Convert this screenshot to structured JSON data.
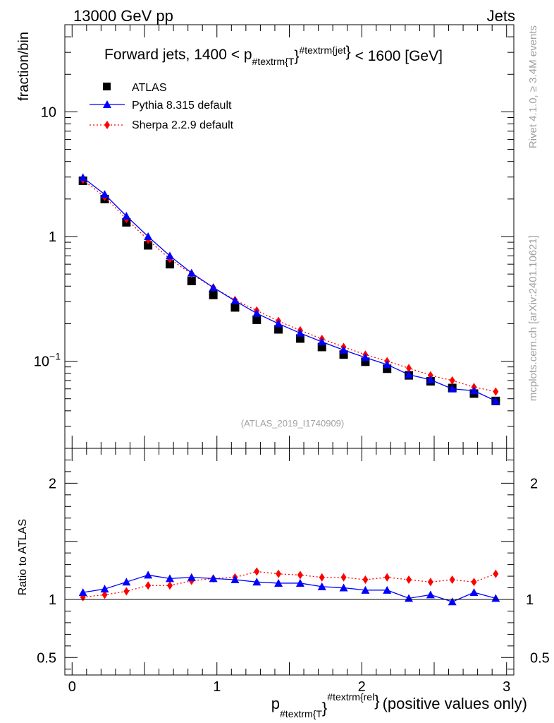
{
  "header": {
    "energy": "13000 GeV pp",
    "category": "Jets",
    "rivet_label": "Rivet 4.1.0, ≥ 3.4M events",
    "source_label": "mcplots.cern.ch [arXiv:2401.10621]",
    "analysis_id": "(ATLAS_2019_I1740909)"
  },
  "colors": {
    "atlas": "#000000",
    "pythia": "#0000ff",
    "sherpa": "#ff0000"
  },
  "chart_data": [
    {
      "type": "line",
      "scale": "log",
      "title_parts": {
        "prefix": "Forward jets, 1400 < p",
        "subscript": "#textrm{T",
        "subscript_close": "}",
        "superscript": "#textrm{jet",
        "superscript_close": "}",
        "suffix": "< 1600 [GeV]"
      },
      "ylabel": "fraction/bin",
      "xlim": [
        -0.05,
        3.05
      ],
      "ylim": [
        0.02,
        50
      ],
      "y_ticks": [
        {
          "value": 10,
          "label": "10"
        },
        {
          "value": 1,
          "label": "1"
        },
        {
          "value": 0.1,
          "label": "10",
          "exp": "−1"
        }
      ],
      "x": [
        0.075,
        0.225,
        0.375,
        0.525,
        0.675,
        0.825,
        0.975,
        1.125,
        1.275,
        1.425,
        1.575,
        1.725,
        1.875,
        2.025,
        2.175,
        2.325,
        2.475,
        2.625,
        2.775,
        2.925
      ],
      "series": [
        {
          "name": "ATLAS",
          "key": "atlas",
          "marker": "square",
          "values": [
            2.8,
            2.0,
            1.3,
            0.85,
            0.6,
            0.44,
            0.34,
            0.27,
            0.215,
            0.18,
            0.152,
            0.13,
            0.113,
            0.099,
            0.087,
            0.077,
            0.069,
            0.061,
            0.055,
            0.048
          ]
        },
        {
          "name": "Pythia 8.315 default",
          "key": "pythia",
          "marker": "triangle",
          "values": [
            2.97,
            2.18,
            1.46,
            1.0,
            0.7,
            0.51,
            0.39,
            0.305,
            0.242,
            0.2,
            0.168,
            0.143,
            0.123,
            0.107,
            0.094,
            0.078,
            0.071,
            0.06,
            0.058,
            0.048
          ]
        },
        {
          "name": "Sherpa 2.2.9 default",
          "key": "sherpa",
          "marker": "diamond",
          "values": [
            2.85,
            2.08,
            1.38,
            0.94,
            0.66,
            0.5,
            0.39,
            0.31,
            0.255,
            0.21,
            0.177,
            0.151,
            0.13,
            0.113,
            0.1,
            0.088,
            0.077,
            0.07,
            0.062,
            0.057
          ]
        }
      ]
    },
    {
      "type": "line",
      "scale": "linear",
      "ylabel": "Ratio to ATLAS",
      "xlabel_parts": {
        "main": "p",
        "subscript": "#textrm{T",
        "subscript_close": "}",
        "superscript": "#textrm{rel",
        "superscript_close": "}",
        "suffix": "(positive values only)"
      },
      "xlim": [
        -0.05,
        3.05
      ],
      "ylim": [
        0.35,
        2.3
      ],
      "x_ticks": [
        {
          "value": 0,
          "label": "0"
        },
        {
          "value": 1,
          "label": "1"
        },
        {
          "value": 2,
          "label": "2"
        },
        {
          "value": 3,
          "label": "3"
        }
      ],
      "y_ticks": [
        {
          "value": 0.5,
          "label": "0.5"
        },
        {
          "value": 1,
          "label": "1"
        },
        {
          "value": 2,
          "label": "2"
        }
      ],
      "x": [
        0.075,
        0.225,
        0.375,
        0.525,
        0.675,
        0.825,
        0.975,
        1.125,
        1.275,
        1.425,
        1.575,
        1.725,
        1.875,
        2.025,
        2.175,
        2.325,
        2.475,
        2.625,
        2.775,
        2.925
      ],
      "series": [
        {
          "name": "Pythia 8.315 default",
          "key": "pythia",
          "marker": "triangle",
          "values": [
            1.06,
            1.09,
            1.15,
            1.21,
            1.18,
            1.19,
            1.18,
            1.17,
            1.15,
            1.14,
            1.14,
            1.11,
            1.1,
            1.08,
            1.08,
            1.01,
            1.04,
            0.98,
            1.06,
            1.01
          ]
        },
        {
          "name": "Sherpa 2.2.9 default",
          "key": "sherpa",
          "marker": "diamond",
          "values": [
            1.02,
            1.04,
            1.07,
            1.12,
            1.12,
            1.16,
            1.18,
            1.19,
            1.24,
            1.22,
            1.21,
            1.19,
            1.19,
            1.17,
            1.19,
            1.17,
            1.15,
            1.17,
            1.15,
            1.22
          ]
        }
      ]
    }
  ]
}
